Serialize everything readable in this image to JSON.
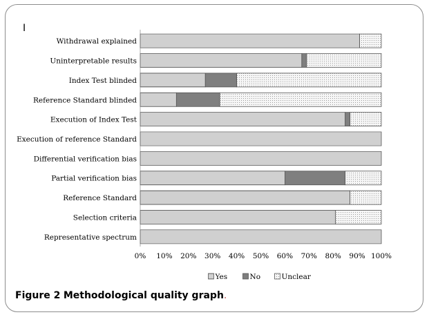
{
  "panel_label": "I",
  "caption": {
    "label": "Figure 2",
    "title": "Methodological quality graph",
    "end": "."
  },
  "colors": {
    "yes_fill": "#ffffff",
    "yes_line": "#8a8a8a",
    "no_fill": "#7f7f7f",
    "unclear_fill": "#f6f6f6",
    "unclear_dot": "#9a9a9a",
    "border": "#555555"
  },
  "chart_data": {
    "type": "bar",
    "orientation": "horizontal",
    "stacked": true,
    "categories": [
      "Withdrawal explained",
      "Uninterpretable results",
      "Index Test blinded",
      "Reference Standard blinded",
      "Execution of Index Test",
      "Execution of reference Standard",
      "Differential verification bias",
      "Partial verification bias",
      "Reference Standard",
      "Selection criteria",
      "Representative spectrum"
    ],
    "series": [
      {
        "name": "Yes",
        "values": [
          91,
          67,
          27,
          15,
          85,
          100,
          100,
          60,
          87,
          81,
          100
        ]
      },
      {
        "name": "No",
        "values": [
          0,
          2,
          13,
          18,
          2,
          0,
          0,
          25,
          0,
          0,
          0
        ]
      },
      {
        "name": "Unclear",
        "values": [
          9,
          31,
          60,
          67,
          13,
          0,
          0,
          15,
          13,
          19,
          0
        ]
      }
    ],
    "xlim": [
      0,
      100
    ],
    "x_ticks": [
      "0%",
      "10%",
      "20%",
      "30%",
      "40%",
      "50%",
      "60%",
      "70%",
      "80%",
      "90%",
      "100%"
    ],
    "legend_position": "bottom"
  }
}
